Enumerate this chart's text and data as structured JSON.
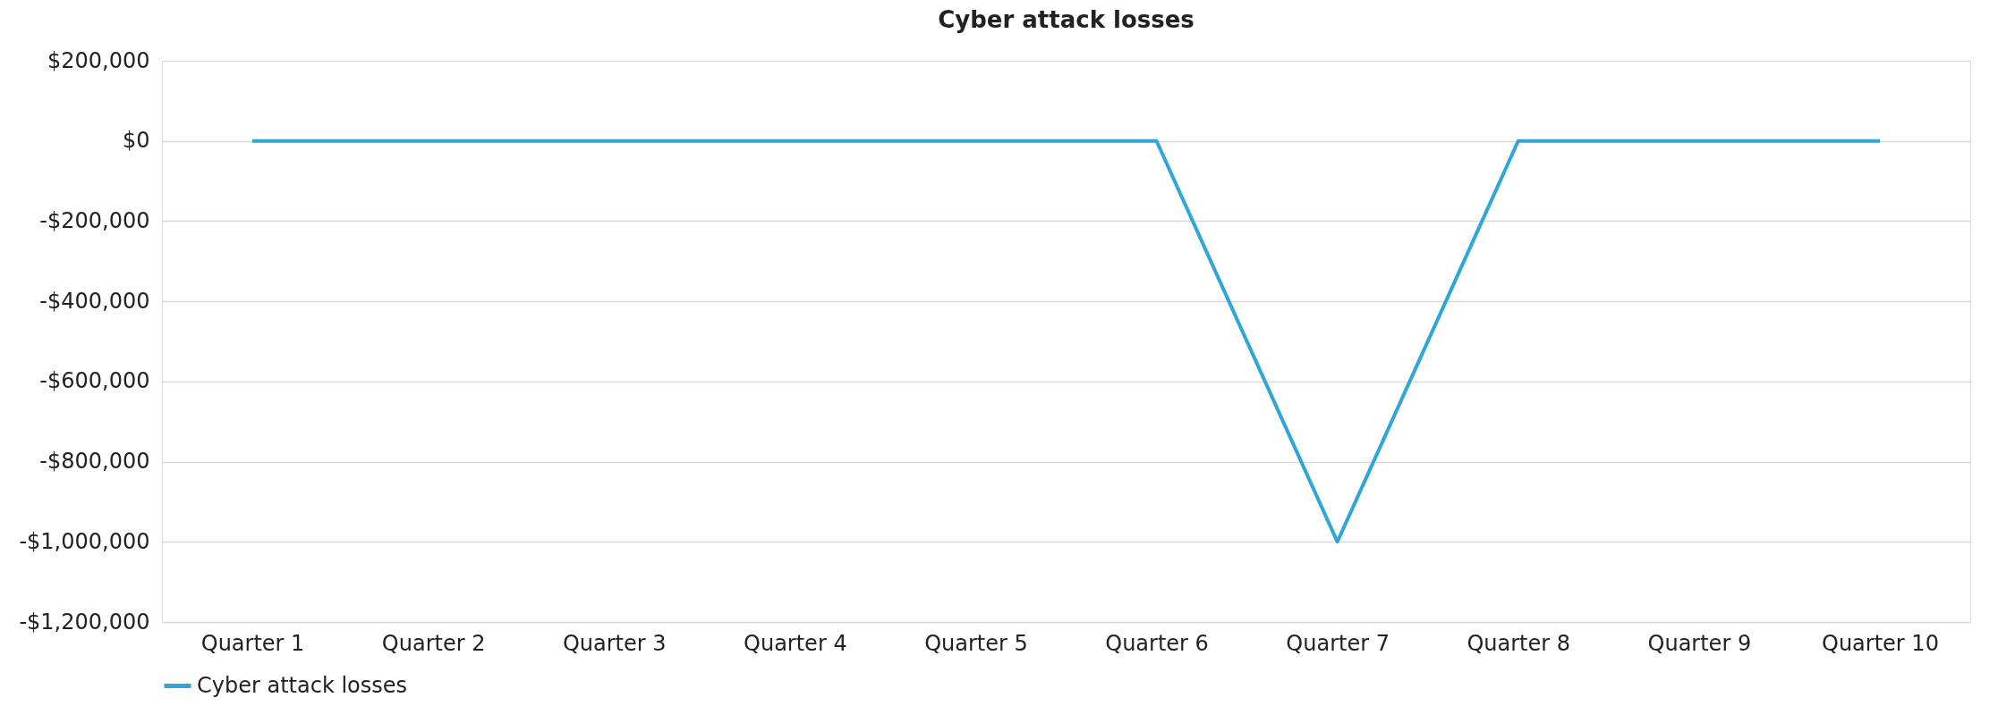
{
  "chart_data": {
    "type": "line",
    "title": "Cyber attack losses",
    "categories": [
      "Quarter 1",
      "Quarter 2",
      "Quarter 3",
      "Quarter 4",
      "Quarter 5",
      "Quarter 6",
      "Quarter 7",
      "Quarter 8",
      "Quarter 9",
      "Quarter 10"
    ],
    "series": [
      {
        "name": "Cyber attack losses",
        "color": "#2ea6d9",
        "values": [
          0,
          0,
          0,
          0,
          0,
          0,
          -1000000,
          0,
          0,
          0
        ]
      }
    ],
    "ylim": [
      -1200000,
      200000
    ],
    "yticks": [
      {
        "value": -1200000,
        "label": "-$1,200,000"
      },
      {
        "value": -1000000,
        "label": "-$1,000,000"
      },
      {
        "value": -800000,
        "label": "-$800,000"
      },
      {
        "value": -600000,
        "label": "-$600,000"
      },
      {
        "value": -400000,
        "label": "-$400,000"
      },
      {
        "value": -200000,
        "label": "-$200,000"
      },
      {
        "value": 0,
        "label": "$0"
      },
      {
        "value": 200000,
        "label": "$200,000"
      }
    ],
    "grid": "y",
    "legend": "bottom",
    "marker": "none",
    "line_style": "solid"
  }
}
